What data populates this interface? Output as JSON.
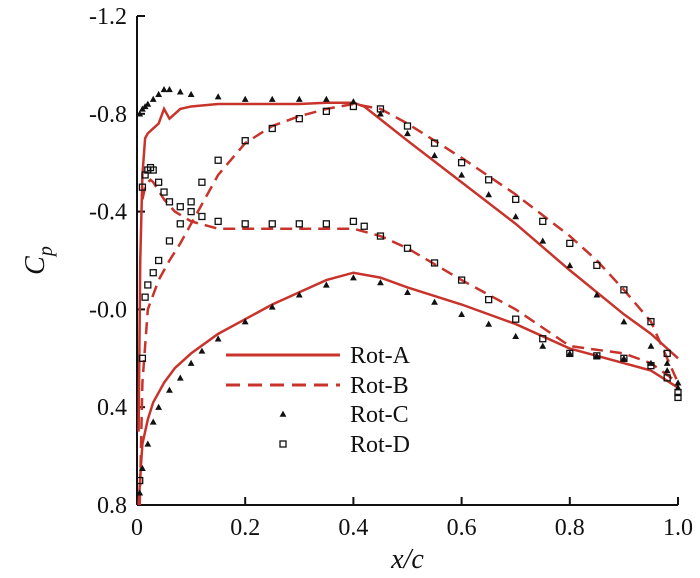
{
  "chart_data": {
    "type": "line",
    "title": "",
    "xlabel": "x/c",
    "ylabel": "C_p",
    "ylabel_main": "C",
    "ylabel_sub": "p",
    "xlim": [
      0,
      1.0
    ],
    "ylim": [
      0.8,
      -1.2
    ],
    "y_inverted": true,
    "grid": false,
    "legend_position": "center",
    "x_ticks": [
      0,
      0.2,
      0.4,
      0.6,
      0.8,
      1.0
    ],
    "x_tick_labels": [
      "0",
      "0.2",
      "0.4",
      "0.6",
      "0.8",
      "1.0"
    ],
    "y_ticks": [
      -1.2,
      -0.8,
      -0.4,
      0.0,
      0.4,
      0.8
    ],
    "y_tick_labels": [
      "-1.2",
      "-0.8",
      "-0.4",
      "-0.0",
      "0.4",
      "0.8"
    ],
    "series": [
      {
        "name": "Rot-A",
        "style": "solid",
        "color": "#c8342b",
        "upper": {
          "x": [
            0.003,
            0.006,
            0.01,
            0.015,
            0.02,
            0.03,
            0.04,
            0.05,
            0.06,
            0.07,
            0.08,
            0.1,
            0.15,
            0.2,
            0.25,
            0.3,
            0.35,
            0.4,
            0.42,
            0.5,
            0.6,
            0.7,
            0.8,
            0.9,
            0.95,
            1.0
          ],
          "y": [
            0.5,
            -0.2,
            -0.55,
            -0.7,
            -0.72,
            -0.74,
            -0.76,
            -0.82,
            -0.78,
            -0.8,
            -0.82,
            -0.83,
            -0.84,
            -0.84,
            -0.84,
            -0.84,
            -0.845,
            -0.845,
            -0.83,
            -0.69,
            -0.52,
            -0.35,
            -0.16,
            0.02,
            0.1,
            0.2
          ]
        },
        "lower": {
          "x": [
            0.003,
            0.007,
            0.01,
            0.02,
            0.03,
            0.05,
            0.07,
            0.1,
            0.15,
            0.2,
            0.25,
            0.3,
            0.35,
            0.4,
            0.45,
            0.5,
            0.6,
            0.7,
            0.8,
            0.85,
            0.9,
            0.95,
            1.0
          ],
          "y": [
            0.8,
            0.65,
            0.55,
            0.45,
            0.38,
            0.3,
            0.24,
            0.18,
            0.1,
            0.04,
            -0.02,
            -0.07,
            -0.12,
            -0.15,
            -0.13,
            -0.09,
            -0.02,
            0.06,
            0.16,
            0.19,
            0.22,
            0.25,
            0.32
          ]
        }
      },
      {
        "name": "Rot-B",
        "style": "dashed",
        "color": "#c8342b",
        "upper": {
          "x": [
            0.01,
            0.015,
            0.02,
            0.025,
            0.03,
            0.05,
            0.07,
            0.1,
            0.15,
            0.2,
            0.3,
            0.35,
            0.4,
            0.45,
            0.5,
            0.6,
            0.7,
            0.8,
            0.9,
            0.95,
            1.0
          ],
          "y": [
            -0.45,
            -0.5,
            -0.52,
            -0.53,
            -0.52,
            -0.45,
            -0.4,
            -0.36,
            -0.33,
            -0.33,
            -0.33,
            -0.33,
            -0.33,
            -0.3,
            -0.25,
            -0.12,
            0.0,
            0.15,
            0.18,
            0.22,
            0.3
          ]
        },
        "lower": {
          "x": [
            0.005,
            0.01,
            0.02,
            0.04,
            0.06,
            0.08,
            0.1,
            0.12,
            0.15,
            0.2,
            0.25,
            0.3,
            0.35,
            0.4,
            0.45,
            0.5,
            0.6,
            0.7,
            0.8,
            0.85,
            0.9,
            0.95,
            1.0
          ],
          "y": [
            0.8,
            0.3,
            0.0,
            -0.12,
            -0.2,
            -0.27,
            -0.35,
            -0.43,
            -0.55,
            -0.68,
            -0.75,
            -0.79,
            -0.82,
            -0.84,
            -0.82,
            -0.76,
            -0.62,
            -0.47,
            -0.3,
            -0.2,
            -0.08,
            0.05,
            0.3
          ]
        }
      },
      {
        "name": "Rot-C",
        "style": "marker-triangle",
        "color": "#111111",
        "upper": {
          "x": [
            0.005,
            0.01,
            0.015,
            0.02,
            0.03,
            0.04,
            0.05,
            0.06,
            0.08,
            0.1,
            0.15,
            0.2,
            0.25,
            0.3,
            0.35,
            0.4,
            0.45,
            0.5,
            0.55,
            0.6,
            0.65,
            0.7,
            0.75,
            0.8,
            0.85,
            0.9,
            0.95,
            0.98,
            1.0
          ],
          "y": [
            -0.8,
            -0.82,
            -0.83,
            -0.84,
            -0.86,
            -0.88,
            -0.9,
            -0.9,
            -0.89,
            -0.88,
            -0.87,
            -0.86,
            -0.86,
            -0.86,
            -0.86,
            -0.85,
            -0.8,
            -0.72,
            -0.63,
            -0.55,
            -0.47,
            -0.38,
            -0.28,
            -0.18,
            -0.06,
            0.05,
            0.15,
            0.22,
            0.3
          ]
        },
        "lower": {
          "x": [
            0.005,
            0.01,
            0.02,
            0.03,
            0.04,
            0.06,
            0.08,
            0.1,
            0.12,
            0.15,
            0.2,
            0.25,
            0.3,
            0.35,
            0.4,
            0.45,
            0.5,
            0.55,
            0.6,
            0.65,
            0.7,
            0.75,
            0.8,
            0.85,
            0.9,
            0.95,
            0.98,
            1.0
          ],
          "y": [
            0.75,
            0.65,
            0.55,
            0.46,
            0.4,
            0.33,
            0.28,
            0.22,
            0.17,
            0.12,
            0.05,
            -0.01,
            -0.06,
            -0.1,
            -0.13,
            -0.11,
            -0.07,
            -0.03,
            0.02,
            0.06,
            0.11,
            0.15,
            0.18,
            0.19,
            0.2,
            0.22,
            0.25,
            0.32
          ]
        }
      },
      {
        "name": "Rot-D",
        "style": "marker-square",
        "color": "#111111",
        "upper": {
          "x": [
            0.01,
            0.015,
            0.02,
            0.025,
            0.03,
            0.04,
            0.05,
            0.06,
            0.08,
            0.1,
            0.12,
            0.15,
            0.2,
            0.25,
            0.3,
            0.35,
            0.4,
            0.42,
            0.45,
            0.5,
            0.55,
            0.6,
            0.65,
            0.7,
            0.75,
            0.8,
            0.85,
            0.9,
            0.95,
            0.98,
            1.0
          ],
          "y": [
            -0.5,
            -0.55,
            -0.57,
            -0.58,
            -0.57,
            -0.52,
            -0.48,
            -0.44,
            -0.42,
            -0.4,
            -0.38,
            -0.36,
            -0.35,
            -0.35,
            -0.35,
            -0.35,
            -0.36,
            -0.34,
            -0.3,
            -0.25,
            -0.19,
            -0.12,
            -0.04,
            0.04,
            0.12,
            0.18,
            0.19,
            0.2,
            0.23,
            0.28,
            0.34
          ]
        },
        "lower": {
          "x": [
            0.005,
            0.01,
            0.015,
            0.02,
            0.03,
            0.04,
            0.06,
            0.08,
            0.1,
            0.12,
            0.15,
            0.2,
            0.25,
            0.3,
            0.35,
            0.4,
            0.45,
            0.5,
            0.55,
            0.6,
            0.65,
            0.7,
            0.75,
            0.8,
            0.85,
            0.9,
            0.95,
            0.98,
            1.0
          ],
          "y": [
            0.7,
            0.2,
            -0.05,
            -0.1,
            -0.15,
            -0.2,
            -0.28,
            -0.35,
            -0.44,
            -0.52,
            -0.61,
            -0.69,
            -0.74,
            -0.78,
            -0.81,
            -0.83,
            -0.82,
            -0.75,
            -0.68,
            -0.6,
            -0.53,
            -0.45,
            -0.36,
            -0.27,
            -0.18,
            -0.08,
            0.05,
            0.18,
            0.36
          ]
        }
      }
    ]
  }
}
